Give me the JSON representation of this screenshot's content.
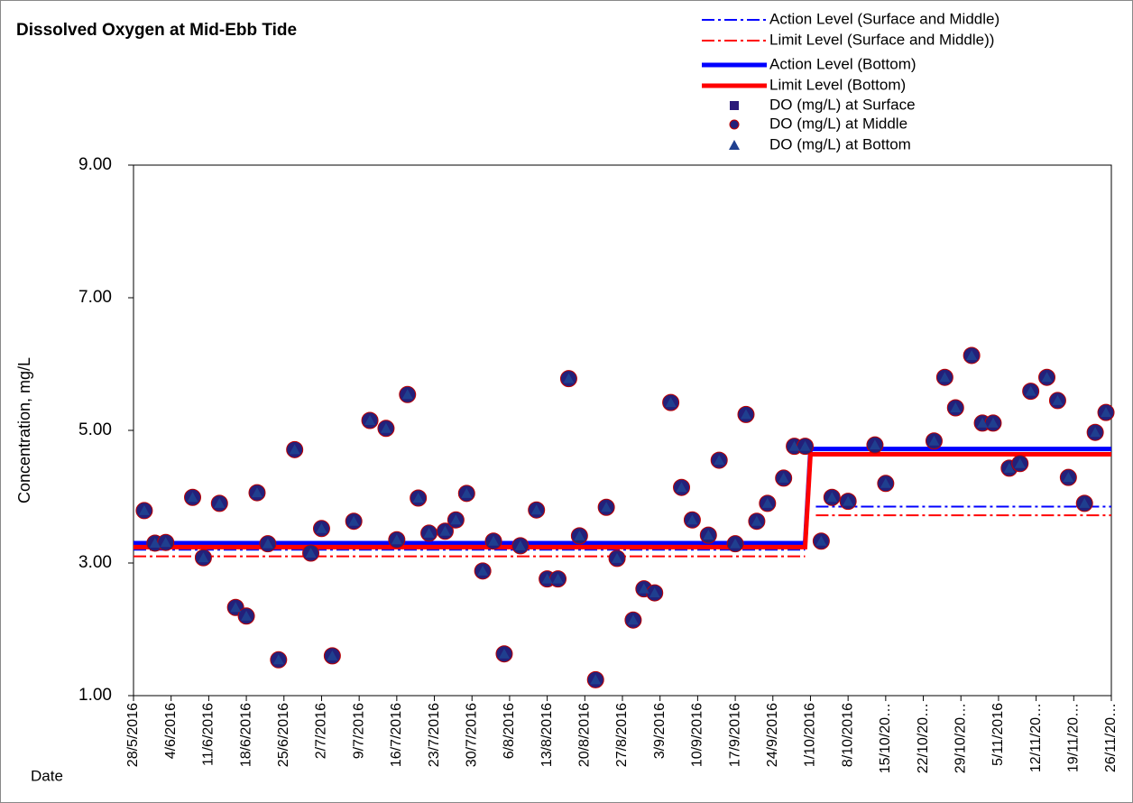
{
  "chart_data": {
    "type": "scatter",
    "title": "Dissolved Oxygen at Mid-Ebb Tide",
    "x_label": "Date",
    "y_label": "Concentration, mg/L",
    "xlim": [
      "2016-05-28",
      "2016-11-26"
    ],
    "ylim": [
      1,
      9
    ],
    "yticks": [
      {
        "value": 1,
        "label": "1.00"
      },
      {
        "value": 3,
        "label": "3.00"
      },
      {
        "value": 5,
        "label": "5.00"
      },
      {
        "value": 7,
        "label": "7.00"
      },
      {
        "value": 9,
        "label": "9.00"
      }
    ],
    "xticks": [
      {
        "value": "2016-05-28",
        "label": "28/5/2016"
      },
      {
        "value": "2016-06-04",
        "label": "4/6/2016"
      },
      {
        "value": "2016-06-11",
        "label": "11/6/2016"
      },
      {
        "value": "2016-06-18",
        "label": "18/6/2016"
      },
      {
        "value": "2016-06-25",
        "label": "25/6/2016"
      },
      {
        "value": "2016-07-02",
        "label": "2/7/2016"
      },
      {
        "value": "2016-07-09",
        "label": "9/7/2016"
      },
      {
        "value": "2016-07-16",
        "label": "16/7/2016"
      },
      {
        "value": "2016-07-23",
        "label": "23/7/2016"
      },
      {
        "value": "2016-07-30",
        "label": "30/7/2016"
      },
      {
        "value": "2016-08-06",
        "label": "6/8/2016"
      },
      {
        "value": "2016-08-13",
        "label": "13/8/2016"
      },
      {
        "value": "2016-08-20",
        "label": "20/8/2016"
      },
      {
        "value": "2016-08-27",
        "label": "27/8/2016"
      },
      {
        "value": "2016-09-03",
        "label": "3/9/2016"
      },
      {
        "value": "2016-09-10",
        "label": "10/9/2016"
      },
      {
        "value": "2016-09-17",
        "label": "17/9/2016"
      },
      {
        "value": "2016-09-24",
        "label": "24/9/2016"
      },
      {
        "value": "2016-10-01",
        "label": "1/10/2016"
      },
      {
        "value": "2016-10-08",
        "label": "8/10/2016"
      },
      {
        "value": "2016-10-15",
        "label": "15/10/20…"
      },
      {
        "value": "2016-10-22",
        "label": "22/10/20…"
      },
      {
        "value": "2016-10-29",
        "label": "29/10/20…"
      },
      {
        "value": "2016-11-05",
        "label": "5/11/2016"
      },
      {
        "value": "2016-11-12",
        "label": "12/11/20…"
      },
      {
        "value": "2016-11-19",
        "label": "19/11/20…"
      },
      {
        "value": "2016-11-26",
        "label": "26/11/20…"
      }
    ],
    "x": [
      "2016-05-30",
      "2016-06-01",
      "2016-06-03",
      "2016-06-08",
      "2016-06-10",
      "2016-06-13",
      "2016-06-16",
      "2016-06-18",
      "2016-06-20",
      "2016-06-22",
      "2016-06-24",
      "2016-06-27",
      "2016-06-30",
      "2016-07-02",
      "2016-07-04",
      "2016-07-08",
      "2016-07-11",
      "2016-07-14",
      "2016-07-16",
      "2016-07-18",
      "2016-07-20",
      "2016-07-22",
      "2016-07-25",
      "2016-07-27",
      "2016-07-29",
      "2016-08-01",
      "2016-08-03",
      "2016-08-05",
      "2016-08-08",
      "2016-08-11",
      "2016-08-13",
      "2016-08-15",
      "2016-08-17",
      "2016-08-19",
      "2016-08-22",
      "2016-08-24",
      "2016-08-26",
      "2016-08-29",
      "2016-08-31",
      "2016-09-02",
      "2016-09-05",
      "2016-09-07",
      "2016-09-09",
      "2016-09-12",
      "2016-09-14",
      "2016-09-17",
      "2016-09-19",
      "2016-09-21",
      "2016-09-23",
      "2016-09-26",
      "2016-09-28",
      "2016-09-30",
      "2016-10-03",
      "2016-10-05",
      "2016-10-08",
      "2016-10-13",
      "2016-10-15",
      "2016-10-24",
      "2016-10-26",
      "2016-10-28",
      "2016-10-31",
      "2016-11-02",
      "2016-11-04",
      "2016-11-07",
      "2016-11-09",
      "2016-11-11",
      "2016-11-14",
      "2016-11-16",
      "2016-11-18",
      "2016-11-21",
      "2016-11-23",
      "2016-11-25"
    ],
    "series": [
      {
        "name": "Action Level (Surface and Middle)",
        "kind": "line",
        "style": "dashdot",
        "color": "#0000ff",
        "x": [
          "2016-05-28",
          "2016-09-30",
          "2016-10-01",
          "2016-10-02",
          "2016-11-26"
        ],
        "values": [
          3.2,
          3.2,
          null,
          3.85,
          3.85
        ]
      },
      {
        "name": "Limit Level (Surface and Middle))",
        "kind": "line",
        "style": "dashdot",
        "color": "#ff0000",
        "x": [
          "2016-05-28",
          "2016-09-30",
          "2016-10-01",
          "2016-10-02",
          "2016-11-26"
        ],
        "values": [
          3.1,
          3.1,
          null,
          3.72,
          3.72
        ]
      },
      {
        "name": "Action Level (Bottom)",
        "kind": "line",
        "style": "solid",
        "color": "#0000ff",
        "x": [
          "2016-05-28",
          "2016-09-30",
          "2016-10-01",
          "2016-11-26"
        ],
        "values": [
          3.3,
          3.3,
          4.72,
          4.72
        ]
      },
      {
        "name": "Limit Level (Bottom)",
        "kind": "line",
        "style": "solid",
        "color": "#ff0000",
        "x": [
          "2016-05-28",
          "2016-09-30",
          "2016-10-01",
          "2016-11-26"
        ],
        "values": [
          3.24,
          3.24,
          4.64,
          4.64
        ]
      },
      {
        "name": "DO (mg/L) at Surface",
        "kind": "marker",
        "marker": "square",
        "color": "#2b1a7a",
        "values": [
          3.79,
          3.3,
          3.31,
          3.99,
          3.08,
          3.9,
          2.33,
          2.2,
          4.06,
          3.29,
          1.54,
          4.71,
          3.15,
          3.52,
          1.6,
          3.63,
          5.15,
          5.03,
          3.35,
          5.54,
          3.98,
          3.45,
          3.48,
          3.65,
          4.05,
          2.88,
          3.33,
          1.63,
          3.26,
          3.8,
          2.76,
          2.76,
          5.78,
          3.41,
          1.24,
          3.84,
          3.07,
          2.14,
          2.61,
          2.55,
          5.42,
          4.14,
          3.65,
          3.42,
          4.55,
          3.29,
          5.24,
          3.63,
          3.9,
          4.28,
          4.76,
          4.76,
          3.33,
          3.99,
          3.93,
          4.78,
          4.2,
          4.84,
          5.8,
          5.34,
          6.13,
          5.11,
          5.11,
          4.43,
          4.5,
          5.59,
          5.8,
          5.45,
          4.29,
          3.9,
          4.97,
          5.27
        ]
      },
      {
        "name": "DO (mg/L) at Middle",
        "kind": "marker",
        "marker": "circle",
        "color": "#23207a",
        "values": [
          3.79,
          3.3,
          3.31,
          3.99,
          3.08,
          3.9,
          2.33,
          2.2,
          4.06,
          3.29,
          1.54,
          4.71,
          3.15,
          3.52,
          1.6,
          3.63,
          5.15,
          5.03,
          3.35,
          5.54,
          3.98,
          3.45,
          3.48,
          3.65,
          4.05,
          2.88,
          3.33,
          1.63,
          3.26,
          3.8,
          2.76,
          2.76,
          5.78,
          3.41,
          1.24,
          3.84,
          3.07,
          2.14,
          2.61,
          2.55,
          5.42,
          4.14,
          3.65,
          3.42,
          4.55,
          3.29,
          5.24,
          3.63,
          3.9,
          4.28,
          4.76,
          4.76,
          3.33,
          3.99,
          3.93,
          4.78,
          4.2,
          4.84,
          5.8,
          5.34,
          6.13,
          5.11,
          5.11,
          4.43,
          4.5,
          5.59,
          5.8,
          5.45,
          4.29,
          3.9,
          4.97,
          5.27
        ]
      },
      {
        "name": "DO (mg/L) at Bottom",
        "kind": "marker",
        "marker": "triangle",
        "color": "#1f3f8f",
        "values": [
          3.79,
          3.3,
          3.31,
          3.99,
          3.08,
          3.9,
          2.33,
          2.2,
          4.06,
          3.29,
          1.54,
          4.71,
          3.15,
          3.52,
          1.6,
          3.63,
          5.15,
          5.03,
          3.35,
          5.54,
          3.98,
          3.45,
          3.48,
          3.65,
          4.05,
          2.88,
          3.33,
          1.63,
          3.26,
          3.8,
          2.76,
          2.76,
          5.78,
          3.41,
          1.24,
          3.84,
          3.07,
          2.14,
          2.61,
          2.55,
          5.42,
          4.14,
          3.65,
          3.42,
          4.55,
          3.29,
          5.24,
          3.63,
          3.9,
          4.28,
          4.76,
          4.76,
          3.33,
          3.99,
          3.93,
          4.78,
          4.2,
          4.84,
          5.8,
          5.34,
          6.13,
          5.11,
          5.11,
          4.43,
          4.5,
          5.59,
          5.8,
          5.45,
          4.29,
          3.9,
          4.97,
          5.27
        ]
      }
    ]
  }
}
